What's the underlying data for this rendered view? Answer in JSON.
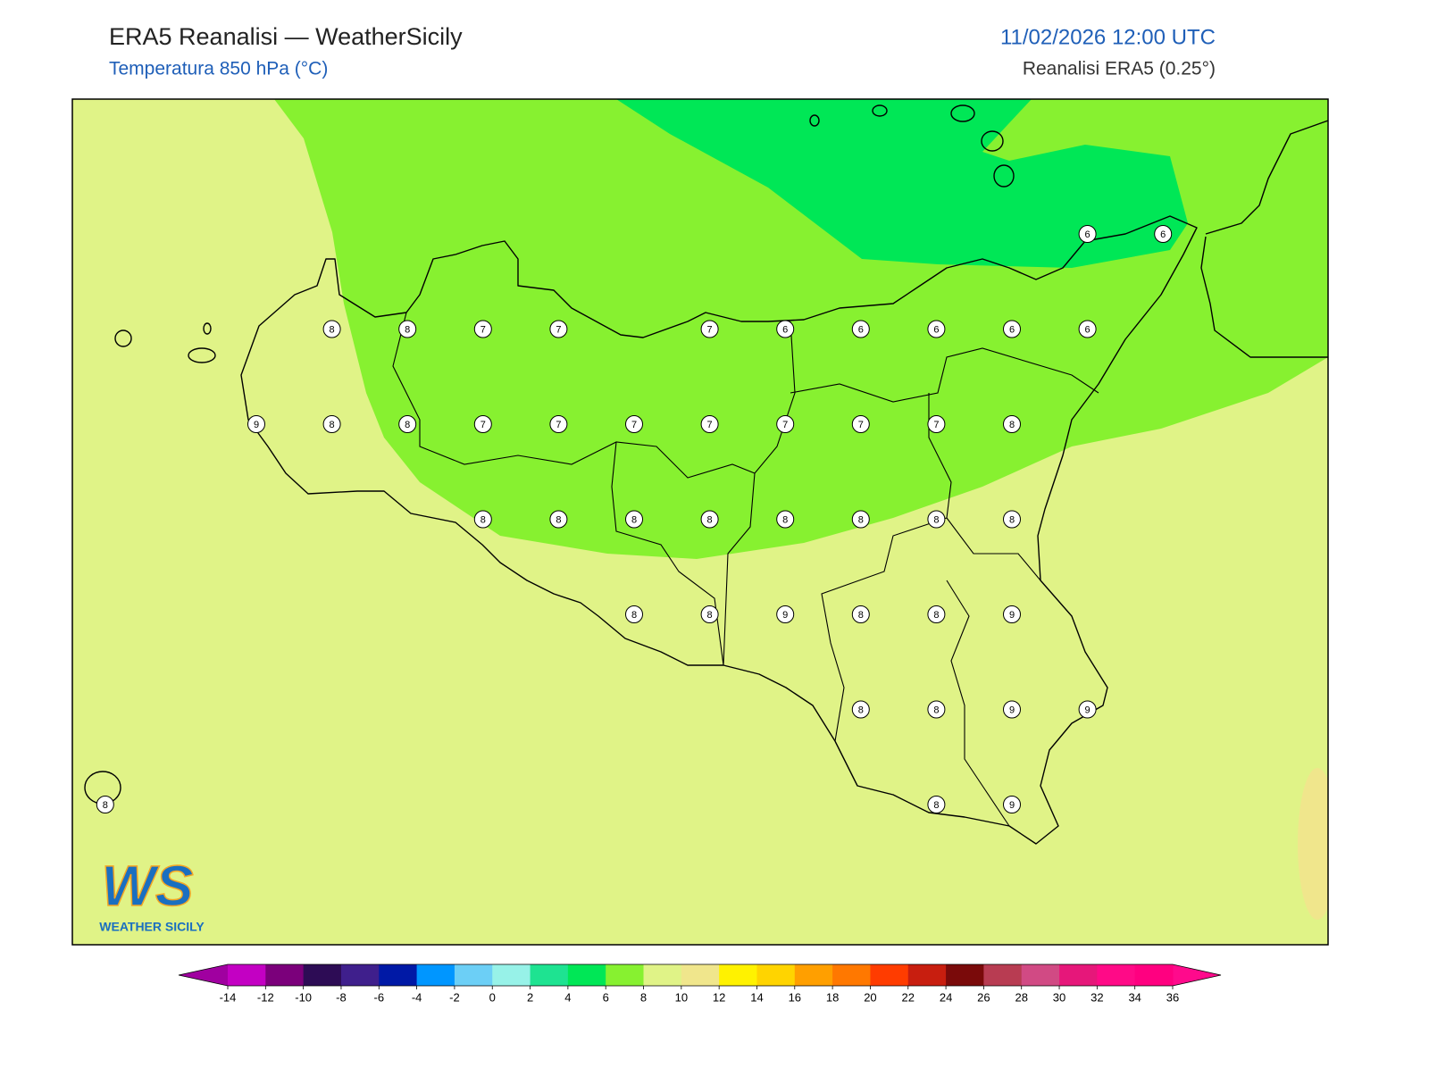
{
  "header": {
    "title": "ERA5 Reanalisi — WeatherSicily",
    "subtitle": "Temperatura 850 hPa (°C)",
    "datetime": "11/02/2026 12:00 UTC",
    "source": "Reanalisi ERA5 (0.25°)"
  },
  "stations": [
    6,
    6,
    8,
    8,
    7,
    7,
    7,
    6,
    6,
    6,
    6,
    6,
    9,
    8,
    8,
    7,
    7,
    7,
    7,
    7,
    7,
    7,
    8,
    8,
    8,
    8,
    8,
    8,
    8,
    8,
    8,
    8,
    8,
    9,
    8,
    8,
    9,
    8,
    8,
    9,
    9,
    8,
    8,
    9
  ],
  "colorbar": {
    "ticks": [
      -14,
      -12,
      -10,
      -8,
      -6,
      -4,
      -2,
      0,
      2,
      4,
      6,
      8,
      10,
      12,
      14,
      16,
      18,
      20,
      22,
      24,
      26,
      28,
      30,
      32,
      34,
      36
    ],
    "colors": [
      "#c300c3",
      "#7b007b",
      "#2d0c55",
      "#3f1f8c",
      "#0019a6",
      "#0096ff",
      "#6ccff6",
      "#97f2e8",
      "#1ee391",
      "#00e756",
      "#87f130",
      "#e0f387",
      "#f0e68c",
      "#fff200",
      "#ffd400",
      "#ff9f00",
      "#ff7800",
      "#ff3c00",
      "#c81e0f",
      "#7a0a0a",
      "#b83c52",
      "#d14a84",
      "#e6177a",
      "#ff0a87",
      "#ff0080"
    ],
    "under_color": "#a000a0",
    "over_color": "#ff0a8c"
  },
  "logo": {
    "mark": "WS",
    "text": "WEATHER SICILY"
  }
}
